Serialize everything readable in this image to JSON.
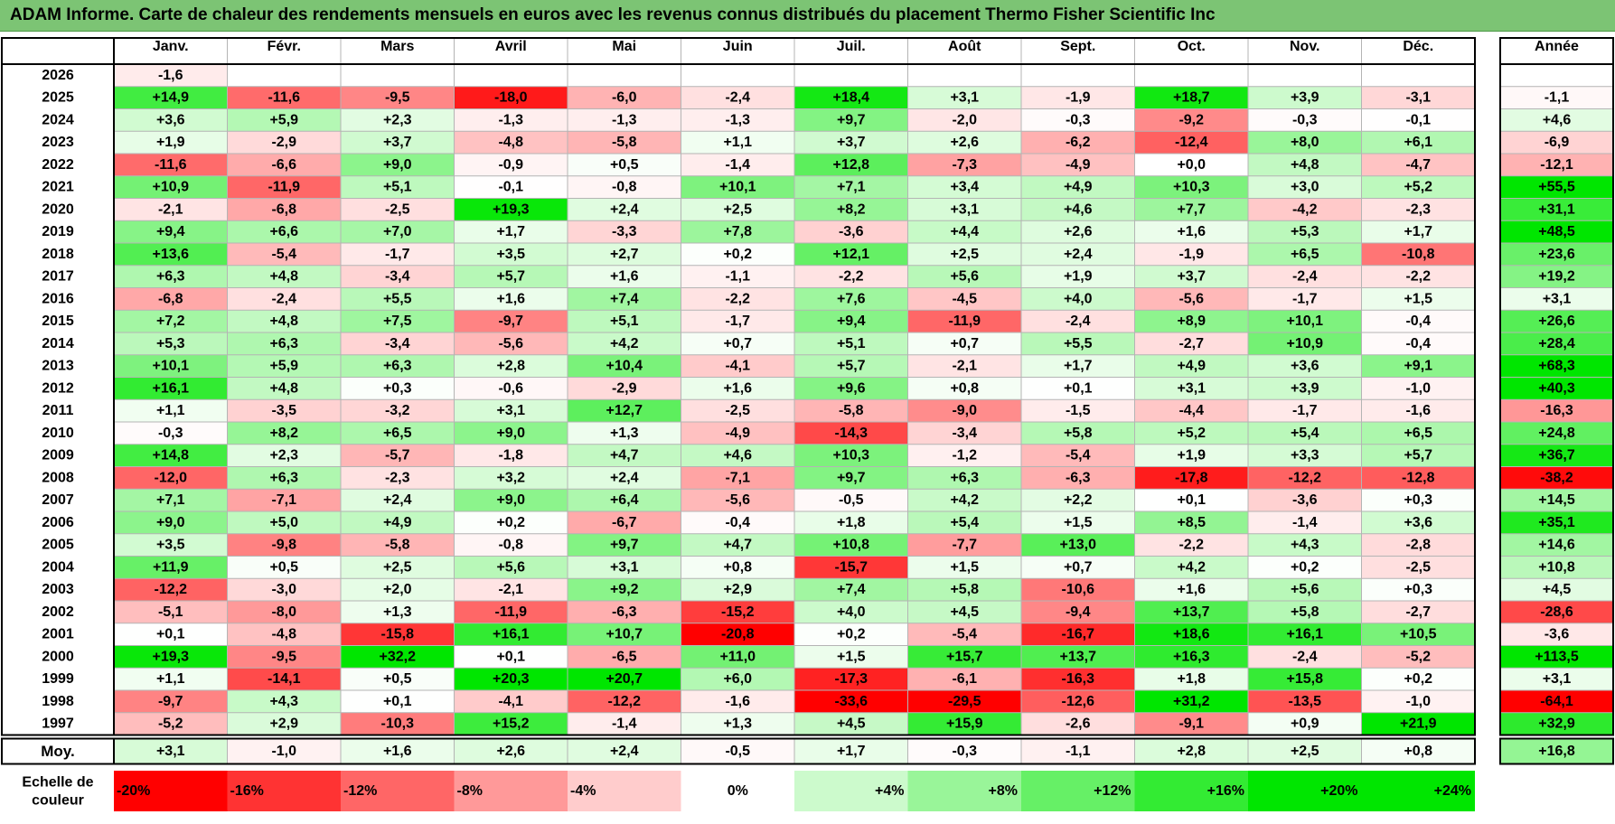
{
  "title": "ADAM Informe. Carte de chaleur des rendements mensuels en euros avec les revenus connus distribués du placement Thermo Fisher Scientific Inc",
  "chart_data": {
    "type": "heatmap",
    "title": "ADAM Informe. Carte de chaleur des rendements mensuels en euros avec les revenus connus distribués du placement Thermo Fisher Scientific Inc",
    "months": [
      "Janv.",
      "Févr.",
      "Mars",
      "Avril",
      "Mai",
      "Juin",
      "Juil.",
      "Août",
      "Sept.",
      "Oct.",
      "Nov.",
      "Déc."
    ],
    "year_header": "Année",
    "rows": [
      {
        "year": "2026",
        "values": [
          -1.6,
          null,
          null,
          null,
          null,
          null,
          null,
          null,
          null,
          null,
          null,
          null
        ],
        "annual": null
      },
      {
        "year": "2025",
        "values": [
          14.9,
          -11.6,
          -9.5,
          -18.0,
          -6.0,
          -2.4,
          18.4,
          3.1,
          -1.9,
          18.7,
          3.9,
          -3.1
        ],
        "annual": -1.1
      },
      {
        "year": "2024",
        "values": [
          3.6,
          5.9,
          2.3,
          -1.3,
          -1.3,
          -1.3,
          9.7,
          -2.0,
          -0.3,
          -9.2,
          -0.3,
          -0.1
        ],
        "annual": 4.6
      },
      {
        "year": "2023",
        "values": [
          1.9,
          -2.9,
          3.7,
          -4.8,
          -5.8,
          1.1,
          3.7,
          2.6,
          -6.2,
          -12.4,
          8.0,
          6.1
        ],
        "annual": -6.9
      },
      {
        "year": "2022",
        "values": [
          -11.6,
          -6.6,
          9.0,
          -0.9,
          0.5,
          -1.4,
          12.8,
          -7.3,
          -4.9,
          0.0,
          4.8,
          -4.7
        ],
        "annual": -12.1
      },
      {
        "year": "2021",
        "values": [
          10.9,
          -11.9,
          5.1,
          -0.1,
          -0.8,
          10.1,
          7.1,
          3.4,
          4.9,
          10.3,
          3.0,
          5.2
        ],
        "annual": 55.5
      },
      {
        "year": "2020",
        "values": [
          -2.1,
          -6.8,
          -2.5,
          19.3,
          2.4,
          2.5,
          8.2,
          3.1,
          4.6,
          7.7,
          -4.2,
          -2.3
        ],
        "annual": 31.1
      },
      {
        "year": "2019",
        "values": [
          9.4,
          6.6,
          7.0,
          1.7,
          -3.3,
          7.8,
          -3.6,
          4.4,
          2.6,
          1.6,
          5.3,
          1.7
        ],
        "annual": 48.5
      },
      {
        "year": "2018",
        "values": [
          13.6,
          -5.4,
          -1.7,
          3.5,
          2.7,
          0.2,
          12.1,
          2.5,
          2.4,
          -1.9,
          6.5,
          -10.8
        ],
        "annual": 23.6
      },
      {
        "year": "2017",
        "values": [
          6.3,
          4.8,
          -3.4,
          5.7,
          1.6,
          -1.1,
          -2.2,
          5.6,
          1.9,
          3.7,
          -2.4,
          -2.2
        ],
        "annual": 19.2
      },
      {
        "year": "2016",
        "values": [
          -6.8,
          -2.4,
          5.5,
          1.6,
          7.4,
          -2.2,
          7.6,
          -4.5,
          4.0,
          -5.6,
          -1.7,
          1.5
        ],
        "annual": 3.1
      },
      {
        "year": "2015",
        "values": [
          7.2,
          4.8,
          7.5,
          -9.7,
          5.1,
          -1.7,
          9.4,
          -11.9,
          -2.4,
          8.9,
          10.1,
          -0.4
        ],
        "annual": 26.6
      },
      {
        "year": "2014",
        "values": [
          5.3,
          6.3,
          -3.4,
          -5.6,
          4.2,
          0.7,
          5.1,
          0.7,
          5.5,
          -2.7,
          10.9,
          -0.4
        ],
        "annual": 28.4
      },
      {
        "year": "2013",
        "values": [
          10.1,
          5.9,
          6.3,
          2.8,
          10.4,
          -4.1,
          5.7,
          -2.1,
          1.7,
          4.9,
          3.6,
          9.1
        ],
        "annual": 68.3
      },
      {
        "year": "2012",
        "values": [
          16.1,
          4.8,
          0.3,
          -0.6,
          -2.9,
          1.6,
          9.6,
          0.8,
          0.1,
          3.1,
          3.9,
          -1.0
        ],
        "annual": 40.3
      },
      {
        "year": "2011",
        "values": [
          1.1,
          -3.5,
          -3.2,
          3.1,
          12.7,
          -2.5,
          -5.8,
          -9.0,
          -1.5,
          -4.4,
          -1.7,
          -1.6
        ],
        "annual": -16.3
      },
      {
        "year": "2010",
        "values": [
          -0.3,
          8.2,
          6.5,
          9.0,
          1.3,
          -4.9,
          -14.3,
          -3.4,
          5.8,
          5.2,
          5.4,
          6.5
        ],
        "annual": 24.8
      },
      {
        "year": "2009",
        "values": [
          14.8,
          2.3,
          -5.7,
          -1.8,
          4.7,
          4.6,
          10.3,
          -1.2,
          -5.4,
          1.9,
          3.3,
          5.7
        ],
        "annual": 36.7
      },
      {
        "year": "2008",
        "values": [
          -12.0,
          6.3,
          -2.3,
          3.2,
          2.4,
          -7.1,
          9.7,
          6.3,
          -6.3,
          -17.8,
          -12.2,
          -12.8
        ],
        "annual": -38.2
      },
      {
        "year": "2007",
        "values": [
          7.1,
          -7.1,
          2.4,
          9.0,
          6.4,
          -5.6,
          -0.5,
          4.2,
          2.2,
          0.1,
          -3.6,
          0.3
        ],
        "annual": 14.5
      },
      {
        "year": "2006",
        "values": [
          9.0,
          5.0,
          4.9,
          0.2,
          -6.7,
          -0.4,
          1.8,
          5.4,
          1.5,
          8.5,
          -1.4,
          3.6
        ],
        "annual": 35.1
      },
      {
        "year": "2005",
        "values": [
          3.5,
          -9.8,
          -5.8,
          -0.8,
          9.7,
          4.7,
          10.8,
          -7.7,
          13.0,
          -2.2,
          4.3,
          -2.8
        ],
        "annual": 14.6
      },
      {
        "year": "2004",
        "values": [
          11.9,
          0.5,
          2.5,
          5.6,
          3.1,
          0.8,
          -15.7,
          1.5,
          0.7,
          4.2,
          0.2,
          -2.5
        ],
        "annual": 10.8
      },
      {
        "year": "2003",
        "values": [
          -12.2,
          -3.0,
          2.0,
          -2.1,
          9.2,
          2.9,
          7.4,
          5.8,
          -10.6,
          1.6,
          5.6,
          0.3
        ],
        "annual": 4.5
      },
      {
        "year": "2002",
        "values": [
          -5.1,
          -8.0,
          1.3,
          -11.9,
          -6.3,
          -15.2,
          4.0,
          4.5,
          -9.4,
          13.7,
          5.8,
          -2.7
        ],
        "annual": -28.6
      },
      {
        "year": "2001",
        "values": [
          0.1,
          -4.8,
          -15.8,
          16.1,
          10.7,
          -20.8,
          0.2,
          -5.4,
          -16.7,
          18.6,
          16.1,
          10.5
        ],
        "annual": -3.6
      },
      {
        "year": "2000",
        "values": [
          19.3,
          -9.5,
          32.2,
          0.1,
          -6.5,
          11.0,
          1.5,
          15.7,
          13.7,
          16.3,
          -2.4,
          -5.2
        ],
        "annual": 113.5
      },
      {
        "year": "1999",
        "values": [
          1.1,
          -14.1,
          0.5,
          20.3,
          20.7,
          6.0,
          -17.3,
          -6.1,
          -16.3,
          1.8,
          15.8,
          0.2
        ],
        "annual": 3.1
      },
      {
        "year": "1998",
        "values": [
          -9.7,
          4.3,
          0.1,
          -4.1,
          -12.2,
          -1.6,
          -33.6,
          -29.5,
          -12.6,
          31.2,
          -13.5,
          -1.0
        ],
        "annual": -64.1
      },
      {
        "year": "1997",
        "values": [
          -5.2,
          2.9,
          -10.3,
          15.2,
          -1.4,
          1.3,
          4.5,
          15.9,
          -2.6,
          -9.1,
          0.9,
          21.9
        ],
        "annual": 32.9
      }
    ],
    "average": {
      "label": "Moy.",
      "values": [
        3.1,
        -1.0,
        1.6,
        2.6,
        2.4,
        -0.5,
        1.7,
        -0.3,
        -1.1,
        2.8,
        2.5,
        0.8
      ],
      "annual": 16.8
    },
    "scale": {
      "label_line1": "Echelle de",
      "label_line2": "couleur",
      "labels": [
        "-20%",
        "-16%",
        "-12%",
        "-8%",
        "-4%",
        "0%",
        "+4%",
        "+8%",
        "+12%",
        "+16%",
        "+20%",
        "+24%"
      ],
      "values": [
        -20,
        -16,
        -12,
        -8,
        -4,
        0,
        4,
        8,
        12,
        16,
        20,
        24
      ]
    },
    "colors": {
      "negative": "#ff0000",
      "positive": "#00e600",
      "neutral": "#ffffff",
      "title_bg": "#7cc474"
    }
  }
}
